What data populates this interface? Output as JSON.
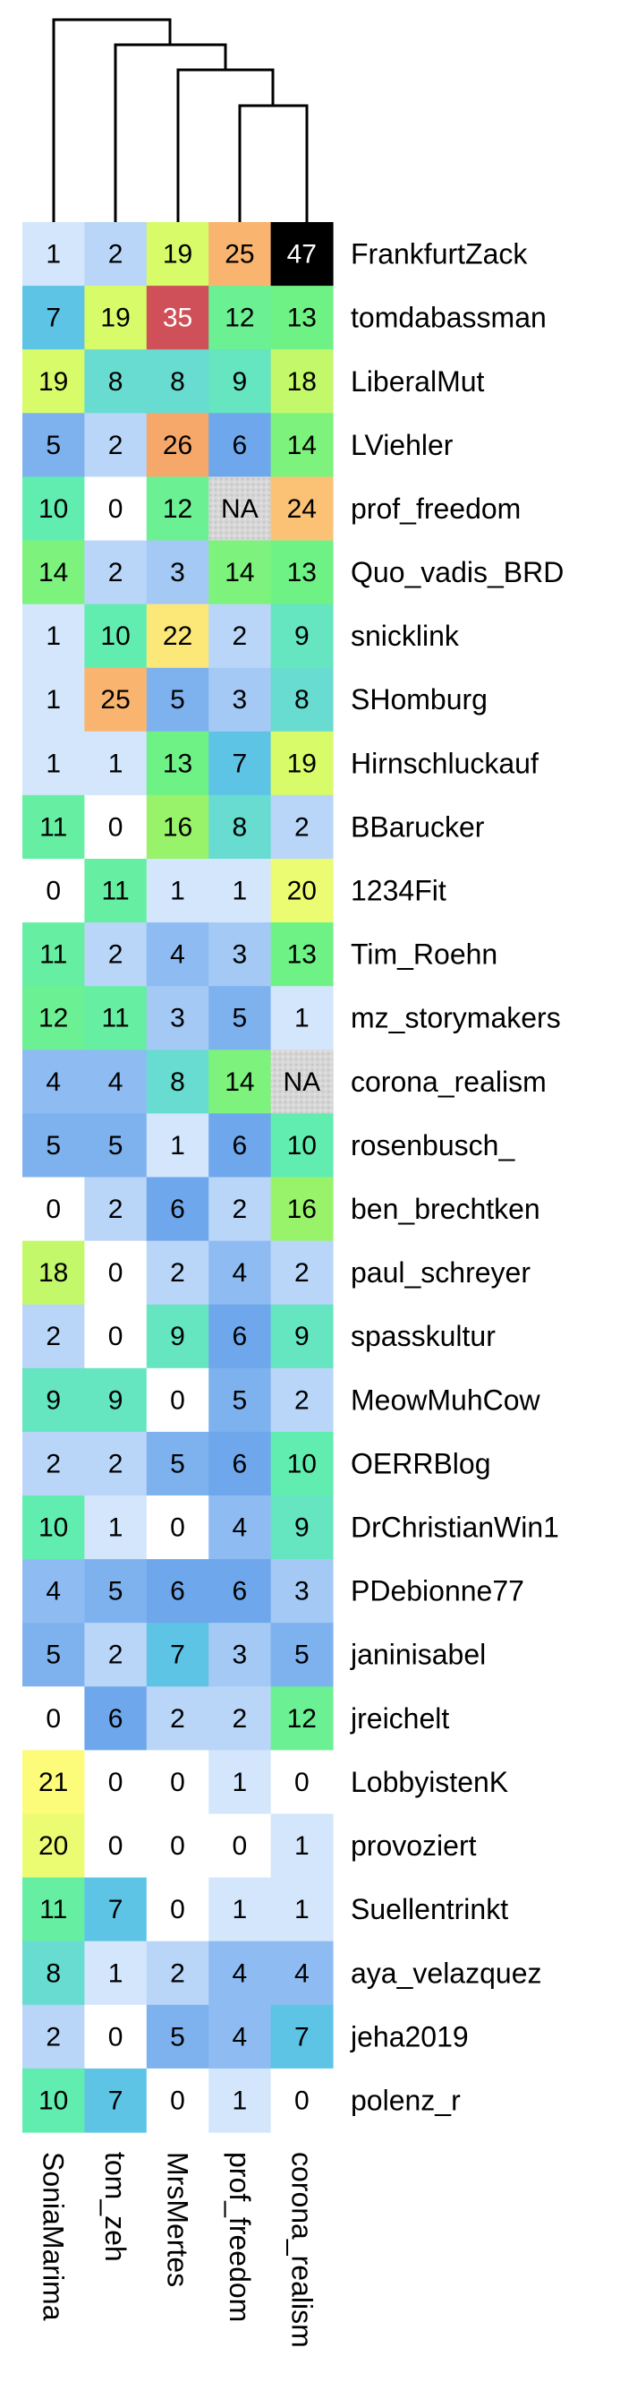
{
  "chart_data": {
    "type": "heatmap",
    "title": "",
    "xlabel": "",
    "ylabel": "",
    "columns": [
      "SoniaMarima",
      "tom_zeh",
      "MrsMertes",
      "prof_freedom",
      "corona_realism"
    ],
    "rows": [
      "FrankfurtZack",
      "tomdabassman",
      "LiberalMut",
      "LViehler",
      "prof_freedom",
      "Quo_vadis_BRD",
      "snicklink",
      "SHomburg",
      "Hirnschluckauf",
      "BBarucker",
      "1234Fit",
      "Tim_Roehn",
      "mz_storymakers",
      "corona_realism",
      "rosenbusch_",
      "ben_brechtken",
      "paul_schreyer",
      "spasskultur",
      "MeowMuhCow",
      "OERRBlog",
      "DrChristianWin1",
      "PDebionne77",
      "janinisabel",
      "jreichelt",
      "LobbyistenK",
      "provoziert",
      "Suellentrinkt",
      "aya_velazquez",
      "jeha2019",
      "polenz_r"
    ],
    "values": [
      [
        1,
        2,
        19,
        25,
        47
      ],
      [
        7,
        19,
        35,
        12,
        13
      ],
      [
        19,
        8,
        8,
        9,
        18
      ],
      [
        5,
        2,
        26,
        6,
        14
      ],
      [
        10,
        0,
        12,
        "NA",
        24
      ],
      [
        14,
        2,
        3,
        14,
        13
      ],
      [
        1,
        10,
        22,
        2,
        9
      ],
      [
        1,
        25,
        5,
        3,
        8
      ],
      [
        1,
        1,
        13,
        7,
        19
      ],
      [
        11,
        0,
        16,
        8,
        2
      ],
      [
        0,
        11,
        1,
        1,
        20
      ],
      [
        11,
        2,
        4,
        3,
        13
      ],
      [
        12,
        11,
        3,
        5,
        1
      ],
      [
        4,
        4,
        8,
        14,
        "NA"
      ],
      [
        5,
        5,
        1,
        6,
        10
      ],
      [
        0,
        2,
        6,
        2,
        16
      ],
      [
        18,
        0,
        2,
        4,
        2
      ],
      [
        2,
        0,
        9,
        6,
        9
      ],
      [
        9,
        9,
        0,
        5,
        2
      ],
      [
        2,
        2,
        5,
        6,
        10
      ],
      [
        10,
        1,
        0,
        4,
        9
      ],
      [
        4,
        5,
        6,
        6,
        3
      ],
      [
        5,
        2,
        7,
        3,
        5
      ],
      [
        0,
        6,
        2,
        2,
        12
      ],
      [
        21,
        0,
        0,
        1,
        0
      ],
      [
        20,
        0,
        0,
        0,
        1
      ],
      [
        11,
        7,
        0,
        1,
        1
      ],
      [
        8,
        1,
        2,
        4,
        4
      ],
      [
        2,
        0,
        5,
        4,
        7
      ],
      [
        10,
        7,
        0,
        1,
        0
      ]
    ],
    "na_label": "NA",
    "color_scale": [
      {
        "value": 0,
        "color": "#ffffff"
      },
      {
        "value": 1,
        "color": "#d3e6fb"
      },
      {
        "value": 2,
        "color": "#b9d6f8"
      },
      {
        "value": 4,
        "color": "#8ebcf2"
      },
      {
        "value": 6,
        "color": "#6ea7ec"
      },
      {
        "value": 7,
        "color": "#5ec4e6"
      },
      {
        "value": 8,
        "color": "#68dcd0"
      },
      {
        "value": 10,
        "color": "#62edb0"
      },
      {
        "value": 13,
        "color": "#6ff285"
      },
      {
        "value": 16,
        "color": "#98f36a"
      },
      {
        "value": 19,
        "color": "#d8fb6a"
      },
      {
        "value": 21,
        "color": "#fdfb7a"
      },
      {
        "value": 24,
        "color": "#fbc275"
      },
      {
        "value": 26,
        "color": "#f6a86a"
      },
      {
        "value": 35,
        "color": "#cf5058"
      },
      {
        "value": 47,
        "color": "#000000"
      }
    ],
    "na_color": "#d4d4d4",
    "dendrogram": "columns",
    "grid": false,
    "legend": "none"
  }
}
